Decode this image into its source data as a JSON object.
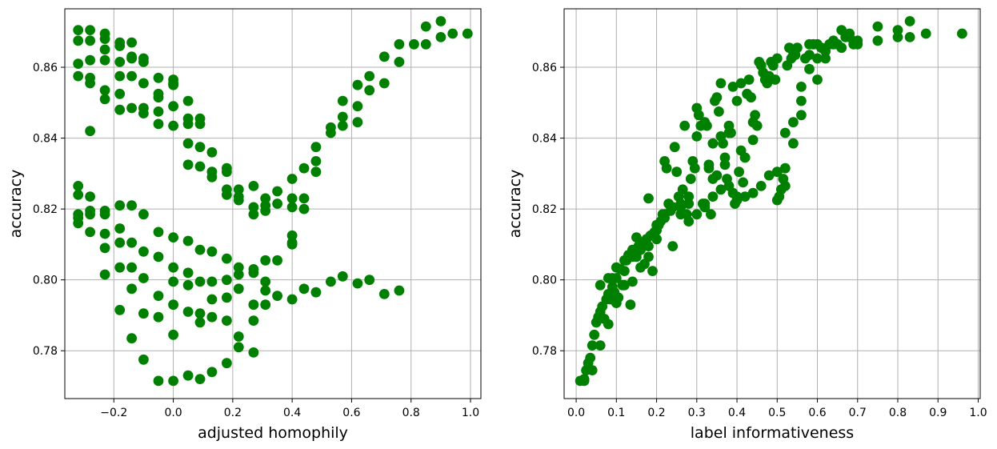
{
  "chart_data": [
    {
      "type": "scatter",
      "xlabel": "adjusted homophily",
      "ylabel": "accuracy",
      "xlim": [
        -0.365,
        1.035
      ],
      "ylim": [
        0.7665,
        0.8765
      ],
      "xticks": [
        -0.2,
        0.0,
        0.2,
        0.4,
        0.6,
        0.8,
        1.0
      ],
      "xtick_labels": [
        "−0.2",
        "0.0",
        "0.2",
        "0.4",
        "0.6",
        "0.8",
        "1.0"
      ],
      "yticks": [
        0.78,
        0.8,
        0.82,
        0.84,
        0.86
      ],
      "ytick_labels": [
        "0.78",
        "0.80",
        "0.82",
        "0.84",
        "0.86"
      ],
      "grid": true,
      "color": "#008000",
      "x": [
        -0.32,
        -0.32,
        -0.32,
        -0.32,
        -0.28,
        -0.28,
        -0.28,
        -0.28,
        -0.28,
        -0.23,
        -0.23,
        -0.23,
        -0.23,
        -0.23,
        -0.23,
        -0.18,
        -0.18,
        -0.18,
        -0.18,
        -0.18,
        -0.18,
        -0.14,
        -0.14,
        -0.14,
        -0.14,
        -0.14,
        -0.1,
        -0.1,
        -0.1,
        -0.1,
        -0.1,
        -0.05,
        -0.05,
        -0.05,
        -0.05,
        -0.05,
        0.0,
        0.0,
        0.0,
        0.0,
        0.0,
        0.05,
        0.05,
        0.05,
        0.05,
        0.05,
        0.09,
        0.09,
        0.09,
        0.09,
        0.13,
        0.13,
        0.13,
        0.18,
        0.18,
        0.18,
        0.18,
        0.22,
        0.22,
        0.22,
        0.27,
        0.27,
        0.27,
        0.31,
        0.31,
        0.31,
        0.35,
        0.35,
        0.4,
        0.4,
        0.4,
        0.44,
        0.44,
        0.44,
        0.48,
        0.48,
        0.48,
        0.53,
        0.53,
        0.57,
        0.57,
        0.57,
        0.62,
        0.62,
        0.62,
        0.66,
        0.66,
        0.71,
        0.71,
        0.76,
        0.76,
        0.81,
        0.85,
        0.85,
        0.9,
        0.9,
        0.94,
        0.99,
        -0.28,
        -0.32,
        -0.32,
        -0.32,
        -0.32,
        -0.32,
        -0.28,
        -0.28,
        -0.28,
        -0.28,
        -0.23,
        -0.23,
        -0.23,
        -0.23,
        -0.23,
        -0.18,
        -0.18,
        -0.18,
        -0.18,
        -0.18,
        -0.14,
        -0.14,
        -0.14,
        -0.14,
        -0.14,
        -0.1,
        -0.1,
        -0.1,
        -0.1,
        -0.1,
        -0.05,
        -0.05,
        -0.05,
        -0.05,
        -0.05,
        0.0,
        0.0,
        0.0,
        0.0,
        0.0,
        0.05,
        0.05,
        0.05,
        0.05,
        0.09,
        0.09,
        0.09,
        0.09,
        0.13,
        0.13,
        0.13,
        0.13,
        0.18,
        0.18,
        0.18,
        0.18,
        0.22,
        0.22,
        0.22,
        0.22,
        0.27,
        0.27,
        0.27,
        0.27,
        0.31,
        0.31,
        0.31,
        0.35,
        0.4,
        0.4,
        0.4,
        0.0,
        0.05,
        0.09,
        0.13,
        0.18,
        0.22,
        0.27,
        0.31,
        0.35,
        0.4,
        0.44,
        0.48,
        0.53,
        0.57,
        0.62,
        0.66,
        0.71,
        0.76
      ],
      "y": [
        0.8705,
        0.8675,
        0.861,
        0.8575,
        0.8705,
        0.8675,
        0.862,
        0.857,
        0.8555,
        0.8695,
        0.868,
        0.865,
        0.862,
        0.8535,
        0.851,
        0.867,
        0.866,
        0.8615,
        0.8575,
        0.8525,
        0.848,
        0.867,
        0.863,
        0.8625,
        0.8575,
        0.8485,
        0.8625,
        0.8615,
        0.8555,
        0.8485,
        0.847,
        0.857,
        0.8525,
        0.8515,
        0.8475,
        0.844,
        0.8565,
        0.8555,
        0.855,
        0.849,
        0.8435,
        0.8505,
        0.8455,
        0.844,
        0.8385,
        0.8325,
        0.8455,
        0.844,
        0.8375,
        0.832,
        0.836,
        0.8305,
        0.829,
        0.8315,
        0.8305,
        0.8255,
        0.824,
        0.8255,
        0.8235,
        0.8225,
        0.8265,
        0.8205,
        0.8185,
        0.823,
        0.821,
        0.8195,
        0.825,
        0.8215,
        0.8285,
        0.823,
        0.8205,
        0.8315,
        0.823,
        0.82,
        0.8375,
        0.8335,
        0.8305,
        0.843,
        0.8415,
        0.8505,
        0.846,
        0.8435,
        0.855,
        0.849,
        0.8445,
        0.8575,
        0.8535,
        0.863,
        0.8555,
        0.8665,
        0.8615,
        0.8665,
        0.8715,
        0.8665,
        0.873,
        0.8685,
        0.8695,
        0.8695,
        0.842,
        0.8265,
        0.824,
        0.8185,
        0.8175,
        0.816,
        0.8235,
        0.8195,
        0.8185,
        0.8135,
        0.8195,
        0.8185,
        0.813,
        0.809,
        0.8015,
        0.821,
        0.8145,
        0.8105,
        0.8035,
        0.7915,
        0.821,
        0.8105,
        0.8035,
        0.7975,
        0.7835,
        0.8185,
        0.808,
        0.8005,
        0.7905,
        0.7775,
        0.8135,
        0.8065,
        0.7955,
        0.7895,
        0.7715,
        0.812,
        0.8035,
        0.793,
        0.7845,
        0.7715,
        0.811,
        0.802,
        0.791,
        0.773,
        0.8085,
        0.7995,
        0.788,
        0.772,
        0.808,
        0.7945,
        0.7895,
        0.774,
        0.806,
        0.795,
        0.7885,
        0.7765,
        0.8015,
        0.7975,
        0.784,
        0.781,
        0.803,
        0.793,
        0.7885,
        0.7795,
        0.8055,
        0.7995,
        0.797,
        0.8055,
        0.8125,
        0.81,
        0.8105,
        0.7995,
        0.7985,
        0.7905,
        0.7995,
        0.8,
        0.8035,
        0.802,
        0.793,
        0.7955,
        0.7945,
        0.7975,
        0.7965,
        0.7995,
        0.801,
        0.799,
        0.8,
        0.796,
        0.797
      ]
    },
    {
      "type": "scatter",
      "xlabel": "label informativeness",
      "ylabel": "accuracy",
      "xlim": [
        -0.03,
        1.005
      ],
      "ylim": [
        0.7665,
        0.8765
      ],
      "xticks": [
        0.0,
        0.1,
        0.2,
        0.3,
        0.4,
        0.5,
        0.6,
        0.7,
        0.8,
        0.9,
        1.0
      ],
      "xtick_labels": [
        "0.0",
        "0.1",
        "0.2",
        "0.3",
        "0.4",
        "0.5",
        "0.6",
        "0.7",
        "0.8",
        "0.9",
        "1.0"
      ],
      "yticks": [
        0.78,
        0.8,
        0.82,
        0.84,
        0.86
      ],
      "ytick_labels": [
        "0.78",
        "0.80",
        "0.82",
        "0.84",
        "0.86"
      ],
      "grid": true,
      "color": "#008000",
      "x": [
        0.01,
        0.02,
        0.025,
        0.03,
        0.035,
        0.04,
        0.045,
        0.05,
        0.055,
        0.06,
        0.065,
        0.07,
        0.075,
        0.08,
        0.085,
        0.09,
        0.09,
        0.095,
        0.1,
        0.1,
        0.105,
        0.11,
        0.115,
        0.12,
        0.125,
        0.13,
        0.135,
        0.14,
        0.145,
        0.15,
        0.15,
        0.155,
        0.16,
        0.165,
        0.17,
        0.175,
        0.18,
        0.185,
        0.19,
        0.195,
        0.2,
        0.205,
        0.21,
        0.215,
        0.22,
        0.225,
        0.23,
        0.235,
        0.24,
        0.245,
        0.25,
        0.255,
        0.26,
        0.265,
        0.27,
        0.275,
        0.28,
        0.285,
        0.29,
        0.295,
        0.3,
        0.305,
        0.31,
        0.315,
        0.32,
        0.325,
        0.33,
        0.335,
        0.34,
        0.345,
        0.35,
        0.355,
        0.36,
        0.365,
        0.37,
        0.375,
        0.38,
        0.385,
        0.39,
        0.395,
        0.4,
        0.405,
        0.41,
        0.415,
        0.42,
        0.425,
        0.43,
        0.435,
        0.44,
        0.445,
        0.45,
        0.455,
        0.46,
        0.465,
        0.47,
        0.475,
        0.48,
        0.485,
        0.49,
        0.495,
        0.5,
        0.505,
        0.51,
        0.515,
        0.52,
        0.525,
        0.53,
        0.535,
        0.54,
        0.545,
        0.55,
        0.56,
        0.57,
        0.58,
        0.59,
        0.6,
        0.61,
        0.62,
        0.63,
        0.64,
        0.65,
        0.66,
        0.67,
        0.68,
        0.69,
        0.7,
        0.75,
        0.75,
        0.8,
        0.8,
        0.83,
        0.83,
        0.87,
        0.96,
        0.02,
        0.04,
        0.06,
        0.08,
        0.1,
        0.12,
        0.14,
        0.16,
        0.18,
        0.2,
        0.22,
        0.24,
        0.26,
        0.28,
        0.3,
        0.32,
        0.34,
        0.36,
        0.38,
        0.4,
        0.42,
        0.44,
        0.46,
        0.48,
        0.5,
        0.52,
        0.54,
        0.56,
        0.58,
        0.6,
        0.3,
        0.32,
        0.34,
        0.36,
        0.38,
        0.4,
        0.42,
        0.44,
        0.28,
        0.26,
        0.24,
        0.22,
        0.2,
        0.18,
        0.16,
        0.14,
        0.12,
        0.1,
        0.08,
        0.06,
        0.33,
        0.35,
        0.37,
        0.39,
        0.41,
        0.5,
        0.52,
        0.54,
        0.56,
        0.58,
        0.6,
        0.62,
        0.64,
        0.66,
        0.68,
        0.7
      ],
      "y": [
        0.7715,
        0.772,
        0.7745,
        0.7765,
        0.778,
        0.7815,
        0.7845,
        0.788,
        0.7895,
        0.791,
        0.7925,
        0.789,
        0.7945,
        0.796,
        0.7945,
        0.798,
        0.8005,
        0.7965,
        0.8005,
        0.7935,
        0.795,
        0.803,
        0.7985,
        0.8025,
        0.8055,
        0.807,
        0.793,
        0.8085,
        0.8075,
        0.812,
        0.8065,
        0.8095,
        0.8085,
        0.8105,
        0.8045,
        0.8115,
        0.823,
        0.8125,
        0.8025,
        0.8135,
        0.814,
        0.8155,
        0.8165,
        0.8185,
        0.8335,
        0.8315,
        0.8215,
        0.8195,
        0.8205,
        0.8375,
        0.8305,
        0.8235,
        0.8205,
        0.8255,
        0.8435,
        0.8185,
        0.8215,
        0.8285,
        0.8335,
        0.8315,
        0.8485,
        0.8465,
        0.8435,
        0.8215,
        0.8205,
        0.8435,
        0.8325,
        0.8185,
        0.8235,
        0.8505,
        0.8515,
        0.8475,
        0.8555,
        0.8385,
        0.8345,
        0.8285,
        0.8435,
        0.8415,
        0.8545,
        0.8215,
        0.8505,
        0.8305,
        0.8555,
        0.8275,
        0.8345,
        0.8525,
        0.8565,
        0.8515,
        0.8445,
        0.8465,
        0.8435,
        0.8615,
        0.8605,
        0.8585,
        0.8565,
        0.8555,
        0.8575,
        0.8615,
        0.8605,
        0.8565,
        0.8625,
        0.8235,
        0.8255,
        0.8285,
        0.8315,
        0.8605,
        0.8655,
        0.8625,
        0.8635,
        0.8635,
        0.8655,
        0.8505,
        0.8625,
        0.8665,
        0.8665,
        0.8565,
        0.8655,
        0.8625,
        0.8665,
        0.8675,
        0.8665,
        0.8705,
        0.8685,
        0.8695,
        0.8665,
        0.8675,
        0.8715,
        0.8675,
        0.8705,
        0.8685,
        0.873,
        0.8685,
        0.8695,
        0.8695,
        0.7715,
        0.7745,
        0.7815,
        0.7875,
        0.7935,
        0.7985,
        0.7995,
        0.8035,
        0.8065,
        0.8115,
        0.8185,
        0.8095,
        0.8215,
        0.8235,
        0.8185,
        0.8215,
        0.8285,
        0.8255,
        0.8265,
        0.8225,
        0.8235,
        0.8245,
        0.8265,
        0.8295,
        0.8305,
        0.8415,
        0.8445,
        0.8465,
        0.8635,
        0.8665,
        0.8405,
        0.8445,
        0.8385,
        0.8405,
        0.8415,
        0.8235,
        0.8345,
        0.8395,
        0.8165,
        0.8185,
        0.8205,
        0.8175,
        0.8155,
        0.8095,
        0.8085,
        0.8065,
        0.8055,
        0.8035,
        0.8005,
        0.7985,
        0.8315,
        0.8295,
        0.8325,
        0.8245,
        0.8365,
        0.8225,
        0.8265,
        0.8385,
        0.8545,
        0.8595,
        0.8625,
        0.8645,
        0.8665,
        0.8655,
        0.8685,
        0.8665
      ]
    }
  ]
}
